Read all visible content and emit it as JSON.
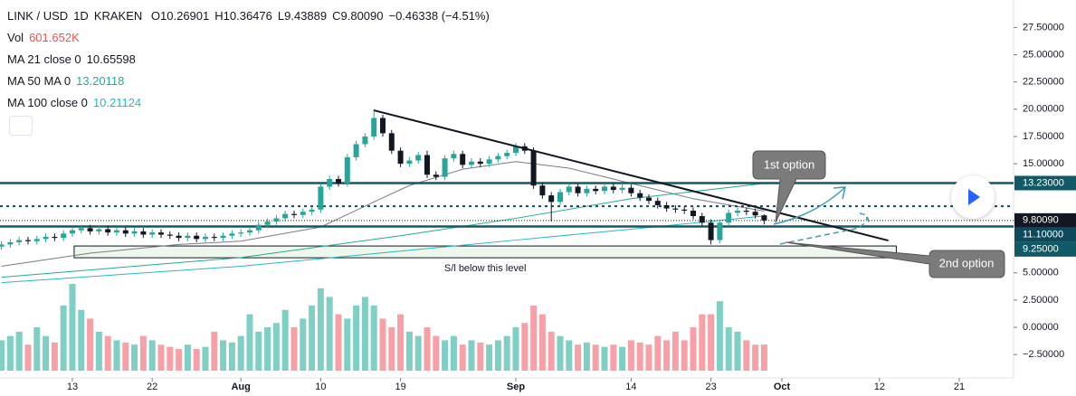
{
  "chart_data": {
    "type": "candlestick",
    "header": {
      "symbol": "LINK / USD",
      "interval": "1D",
      "exchange": "KRAKEN",
      "open": "O10.26901",
      "high": "H10.36476",
      "low": "L9.43889",
      "close": "C9.80090",
      "change": "−0.46338 (−4.51%)"
    },
    "indicators": [
      {
        "label": "Vol",
        "value": "601.652K",
        "color": "#ef5350"
      },
      {
        "label": "MA 21 close 0",
        "value": "10.65598",
        "color": "#131722"
      },
      {
        "label": "MA 50 MA 0",
        "value": "13.20118",
        "color": "#22ab94"
      },
      {
        "label": "MA 100 close 0",
        "value": "10.21124",
        "color": "#26b7c9"
      }
    ],
    "x": [
      4,
      5,
      6,
      7,
      8,
      9,
      10,
      11,
      12,
      13,
      14,
      15,
      16,
      17,
      18,
      19,
      20,
      21,
      22,
      23,
      24,
      25,
      26,
      27,
      28,
      29,
      30,
      31,
      32,
      33,
      34,
      35,
      36,
      37,
      38,
      39,
      40,
      41,
      42,
      43,
      44,
      45,
      46,
      47,
      48,
      49,
      50,
      51,
      52,
      53,
      54,
      55,
      56,
      57,
      58,
      59,
      60,
      61,
      62,
      63,
      64,
      65,
      66,
      67,
      68,
      69,
      70,
      71,
      72,
      73,
      74,
      75,
      76,
      77,
      78,
      79,
      80,
      81,
      82,
      83,
      84,
      85,
      86,
      87,
      88,
      89,
      90
    ],
    "open": [
      7.4,
      7.6,
      7.8,
      8.0,
      7.9,
      8.1,
      8.3,
      8.2,
      8.6,
      8.9,
      9.1,
      8.8,
      9.0,
      8.7,
      8.9,
      8.6,
      8.8,
      8.5,
      8.7,
      8.5,
      8.4,
      8.2,
      8.4,
      8.1,
      8.3,
      8.2,
      8.4,
      8.6,
      8.7,
      8.9,
      9.4,
      9.7,
      10.0,
      10.4,
      10.3,
      10.6,
      10.8,
      12.9,
      13.6,
      13.2,
      15.6,
      16.8,
      17.5,
      19.2,
      17.8,
      16.2,
      15.0,
      15.3,
      15.8,
      14.0,
      13.8,
      15.5,
      15.9,
      14.9,
      15.2,
      15.0,
      15.4,
      15.7,
      16.0,
      16.6,
      16.2,
      13.0,
      12.1,
      11.5,
      12.4,
      12.9,
      12.3,
      12.7,
      12.5,
      12.9,
      12.6,
      12.8,
      12.3,
      11.9,
      11.6,
      11.2,
      10.9,
      10.8,
      10.7,
      10.2,
      9.6,
      8.0,
      9.6,
      10.5,
      10.7,
      10.6,
      10.26901
    ],
    "high": [
      7.9,
      8.1,
      8.3,
      8.3,
      8.4,
      8.6,
      8.6,
      8.9,
      9.2,
      9.4,
      9.4,
      9.3,
      9.3,
      9.2,
      9.2,
      9.1,
      9.1,
      9.0,
      9.0,
      8.8,
      8.7,
      8.7,
      8.7,
      8.6,
      8.6,
      8.7,
      8.9,
      9.0,
      9.2,
      9.7,
      10.0,
      10.3,
      10.7,
      10.7,
      10.9,
      11.1,
      13.2,
      13.9,
      13.9,
      15.9,
      17.1,
      17.8,
      20.0,
      19.5,
      18.1,
      16.5,
      15.6,
      16.1,
      16.2,
      14.3,
      15.8,
      16.2,
      16.2,
      15.5,
      15.5,
      15.7,
      16.0,
      16.3,
      16.9,
      16.9,
      16.5,
      13.3,
      12.4,
      12.7,
      13.2,
      13.2,
      13.0,
      13.0,
      13.2,
      13.2,
      13.1,
      13.1,
      12.6,
      12.2,
      11.9,
      11.5,
      11.2,
      11.1,
      11.0,
      10.5,
      9.9,
      9.9,
      10.8,
      11.0,
      11.0,
      10.9,
      10.36476
    ],
    "low": [
      7.1,
      7.3,
      7.5,
      7.6,
      7.6,
      7.8,
      7.9,
      7.9,
      8.3,
      8.6,
      8.5,
      8.5,
      8.4,
      8.4,
      8.3,
      8.3,
      8.2,
      8.2,
      8.2,
      8.1,
      7.9,
      7.9,
      7.8,
      7.8,
      7.9,
      7.9,
      8.1,
      8.3,
      8.4,
      8.6,
      9.1,
      9.4,
      9.7,
      10.0,
      10.0,
      10.3,
      10.5,
      12.6,
      12.9,
      12.9,
      15.3,
      16.5,
      17.2,
      17.5,
      15.9,
      14.7,
      14.7,
      15.0,
      13.7,
      13.5,
      13.5,
      15.2,
      14.6,
      14.6,
      14.7,
      14.7,
      15.1,
      15.4,
      15.7,
      15.9,
      12.7,
      11.8,
      9.7,
      11.2,
      12.1,
      12.0,
      12.0,
      12.2,
      12.2,
      12.3,
      12.3,
      12.0,
      11.6,
      11.3,
      10.9,
      10.6,
      10.5,
      10.4,
      9.9,
      9.3,
      7.6,
      7.7,
      9.3,
      10.2,
      10.3,
      10.0,
      9.43889
    ],
    "close": [
      7.6,
      7.8,
      8.0,
      7.9,
      8.1,
      8.3,
      8.2,
      8.6,
      8.9,
      9.1,
      8.8,
      9.0,
      8.7,
      8.9,
      8.6,
      8.8,
      8.5,
      8.7,
      8.5,
      8.4,
      8.2,
      8.4,
      8.1,
      8.3,
      8.2,
      8.4,
      8.6,
      8.7,
      8.9,
      9.4,
      9.7,
      10.0,
      10.4,
      10.3,
      10.6,
      10.8,
      12.9,
      13.6,
      13.2,
      15.6,
      16.8,
      17.5,
      19.2,
      17.8,
      16.2,
      15.0,
      15.3,
      15.8,
      14.0,
      13.8,
      15.5,
      15.9,
      14.9,
      15.2,
      15.0,
      15.4,
      15.7,
      16.0,
      16.6,
      16.2,
      13.0,
      12.1,
      11.5,
      12.4,
      12.9,
      12.3,
      12.7,
      12.5,
      12.9,
      12.6,
      12.8,
      12.3,
      11.9,
      11.6,
      11.2,
      10.9,
      10.8,
      10.7,
      10.2,
      9.6,
      8.0,
      9.6,
      10.5,
      10.7,
      10.6,
      10.26428,
      9.8009
    ],
    "volume": [
      700,
      800,
      900,
      600,
      1000,
      800,
      650,
      1500,
      2000,
      1400,
      1200,
      900,
      800,
      700,
      650,
      600,
      800,
      700,
      600,
      550,
      500,
      600,
      500,
      550,
      900,
      700,
      650,
      800,
      1300,
      900,
      1000,
      1100,
      1400,
      1000,
      1200,
      1500,
      1900,
      1700,
      1300,
      1200,
      1500,
      1700,
      1500,
      1200,
      1000,
      1300,
      900,
      800,
      1000,
      800,
      700,
      800,
      600,
      700,
      650,
      600,
      700,
      800,
      1000,
      1100,
      1500,
      1300,
      900,
      800,
      700,
      600,
      650,
      600,
      550,
      600,
      550,
      700,
      650,
      600,
      800,
      700,
      900,
      700,
      1000,
      1300,
      1300,
      1600,
      1000,
      900,
      700,
      600,
      601.652
    ],
    "up_color": "#26a69a",
    "down_color": "#131722",
    "volume_up_color": "#7fcfc4",
    "volume_down_color": "#f7a1a7",
    "moving_averages": [
      {
        "name": "MA 21",
        "color": "#787b86",
        "x": [
          4,
          14,
          24,
          31,
          40,
          46,
          50,
          56,
          62,
          68,
          75,
          82,
          90
        ],
        "values": [
          5.6,
          6.8,
          7.6,
          7.9,
          9.2,
          11.5,
          13.0,
          14.5,
          15.2,
          14.6,
          13.2,
          11.8,
          10.66
        ]
      },
      {
        "name": "MA 50",
        "color": "#22ab94",
        "x": [
          4,
          31,
          49,
          62,
          75,
          90
        ],
        "values": [
          4.6,
          6.4,
          8.4,
          10.0,
          11.8,
          13.2
        ]
      },
      {
        "name": "MA 100",
        "color": "#26b7c9",
        "x": [
          4,
          31,
          62,
          75,
          90
        ],
        "values": [
          4.1,
          5.6,
          8.0,
          9.0,
          10.21
        ]
      }
    ],
    "levels": [
      {
        "value": 13.23,
        "label": "13.23000",
        "style": "solid",
        "color": "#0f5a66"
      },
      {
        "value": 11.1,
        "label": "11.10000",
        "style": "dotted",
        "color": "#0f4a5c"
      },
      {
        "value": 9.25,
        "label": "9.25000",
        "style": "solid",
        "color": "#0f5a66"
      }
    ],
    "last_label": "9.80090",
    "trendline": {
      "x": [
        46,
        104
      ],
      "values": [
        19.9,
        7.96
      ]
    },
    "sl_zone": {
      "x": [
        12.2,
        104.9
      ],
      "values": [
        6.38,
        7.46
      ],
      "label": "S/l below this level"
    },
    "annotations": {
      "first": "1st option",
      "second": "2nd option"
    },
    "xlim": [
      3.84,
      118.12
    ],
    "xticks": [
      {
        "value": 12,
        "label": "13"
      },
      {
        "value": 21,
        "label": "22"
      },
      {
        "value": 31,
        "label": "Aug"
      },
      {
        "value": 40,
        "label": "10"
      },
      {
        "value": 49,
        "label": "19"
      },
      {
        "value": 62,
        "label": "Sep"
      },
      {
        "value": 75,
        "label": "14"
      },
      {
        "value": 84,
        "label": "23"
      },
      {
        "value": 92,
        "label": "Oct"
      },
      {
        "value": 103,
        "label": "12"
      },
      {
        "value": 112,
        "label": "21"
      }
    ],
    "ylim": [
      -4.64,
      30.02
    ],
    "yticks": [
      {
        "value": 27.5,
        "label": "27.50000"
      },
      {
        "value": 25,
        "label": "25.00000"
      },
      {
        "value": 22.5,
        "label": "22.50000"
      },
      {
        "value": 20,
        "label": "20.00000"
      },
      {
        "value": 17.5,
        "label": "17.50000"
      },
      {
        "value": 15,
        "label": "15.00000"
      },
      {
        "value": 5,
        "label": "5.00000"
      },
      {
        "value": 2.5,
        "label": "2.50000"
      },
      {
        "value": 0,
        "label": "0.00000"
      },
      {
        "value": -2.5,
        "label": "−2.50000"
      }
    ]
  }
}
